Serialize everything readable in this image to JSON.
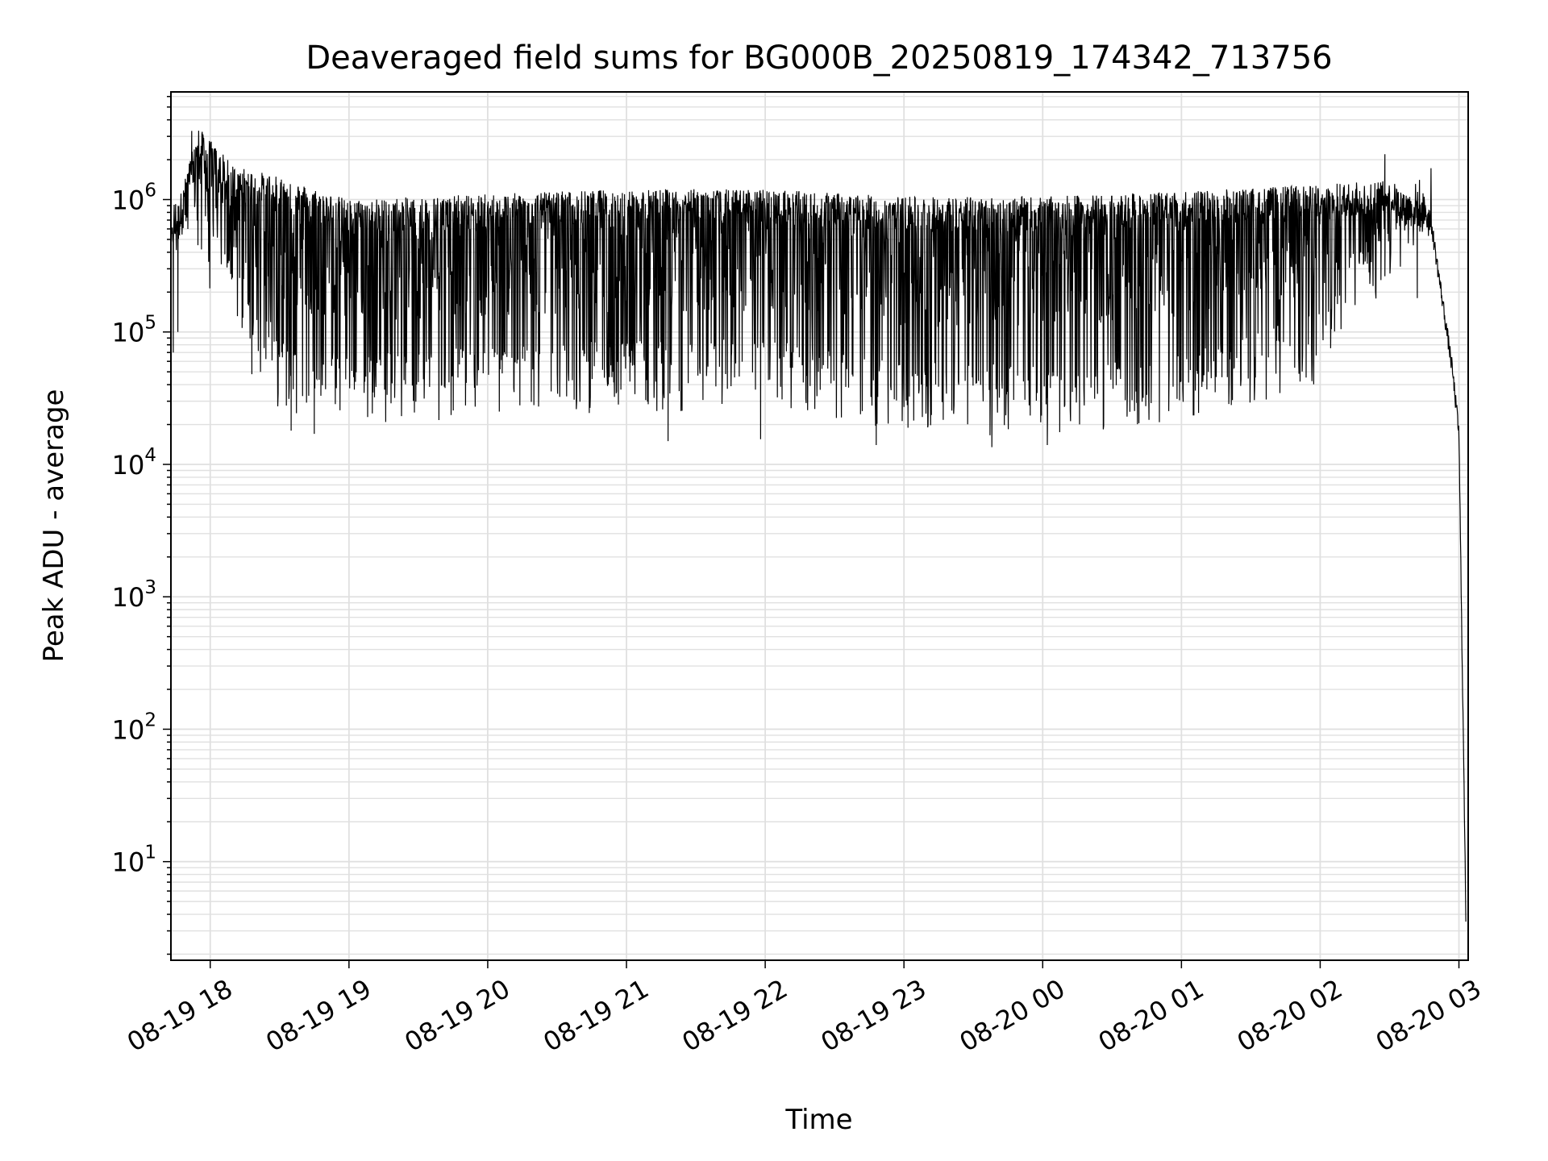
{
  "chart_data": {
    "type": "line",
    "title": "Deaveraged field sums for BG000B_20250819_174342_713756",
    "xlabel": "Time",
    "ylabel": "Peak ADU - average",
    "yscale": "log",
    "ylim": [
      1.8,
      6500000
    ],
    "xlim": [
      "2025-08-19 17:43",
      "2025-08-20 03:04"
    ],
    "grid": true,
    "line_color": "#000000",
    "grid_color": "#e0e0e0",
    "x_ticks": [
      {
        "t": "2025-08-19 18:00",
        "label": "08-19 18"
      },
      {
        "t": "2025-08-19 19:00",
        "label": "08-19 19"
      },
      {
        "t": "2025-08-19 20:00",
        "label": "08-19 20"
      },
      {
        "t": "2025-08-19 21:00",
        "label": "08-19 21"
      },
      {
        "t": "2025-08-19 22:00",
        "label": "08-19 22"
      },
      {
        "t": "2025-08-19 23:00",
        "label": "08-19 23"
      },
      {
        "t": "2025-08-20 00:00",
        "label": "08-20 00"
      },
      {
        "t": "2025-08-20 01:00",
        "label": "08-20 01"
      },
      {
        "t": "2025-08-20 02:00",
        "label": "08-20 02"
      },
      {
        "t": "2025-08-20 03:00",
        "label": "08-20 03"
      }
    ],
    "y_ticks": [
      {
        "value": 10,
        "base": "10",
        "exp": "1"
      },
      {
        "value": 100,
        "base": "10",
        "exp": "2"
      },
      {
        "value": 1000,
        "base": "10",
        "exp": "3"
      },
      {
        "value": 10000,
        "base": "10",
        "exp": "4"
      },
      {
        "value": 100000,
        "base": "10",
        "exp": "5"
      },
      {
        "value": 1000000,
        "base": "10",
        "exp": "6"
      }
    ],
    "series": [
      {
        "envelope": {
          "description_points": [
            {
              "t": "2025-08-19 17:43",
              "top": 600000,
              "bottom": 300000
            },
            {
              "t": "2025-08-19 17:55",
              "top": 3500000,
              "bottom": 250000
            },
            {
              "t": "2025-08-19 18:10",
              "top": 1800000,
              "bottom": 120000
            },
            {
              "t": "2025-08-19 18:30",
              "top": 1500000,
              "bottom": 25000
            },
            {
              "t": "2025-08-19 19:00",
              "top": 1000000,
              "bottom": 20000
            },
            {
              "t": "2025-08-19 20:00",
              "top": 1100000,
              "bottom": 22000
            },
            {
              "t": "2025-08-19 21:00",
              "top": 1200000,
              "bottom": 25000
            },
            {
              "t": "2025-08-19 22:00",
              "top": 1200000,
              "bottom": 25000
            },
            {
              "t": "2025-08-19 23:00",
              "top": 1050000,
              "bottom": 17000
            },
            {
              "t": "2025-08-20 00:00",
              "top": 1050000,
              "bottom": 16000
            },
            {
              "t": "2025-08-20 01:00",
              "top": 1150000,
              "bottom": 19000
            },
            {
              "t": "2025-08-20 02:00",
              "top": 1300000,
              "bottom": 40000
            },
            {
              "t": "2025-08-20 02:30",
              "top": 1400000,
              "bottom": 250000
            },
            {
              "t": "2025-08-20 02:48",
              "top": 900000,
              "bottom": 500000
            },
            {
              "t": "2025-08-20 02:57",
              "top": 60000,
              "bottom": 50000
            },
            {
              "t": "2025-08-20 03:00",
              "top": 20000,
              "bottom": 15000
            },
            {
              "t": "2025-08-20 03:03",
              "top": 4,
              "bottom": 4
            }
          ],
          "spikes": [
            {
              "t": "2025-08-19 17:44",
              "value": 70000
            },
            {
              "t": "2025-08-19 17:46",
              "value": 100000
            },
            {
              "t": "2025-08-19 17:52",
              "value": 3300000
            },
            {
              "t": "2025-08-19 18:18",
              "value": 48000
            },
            {
              "t": "2025-08-19 18:35",
              "value": 18000
            },
            {
              "t": "2025-08-19 18:45",
              "value": 17000
            },
            {
              "t": "2025-08-19 21:18",
              "value": 15000
            },
            {
              "t": "2025-08-19 21:58",
              "value": 15500
            },
            {
              "t": "2025-08-19 22:48",
              "value": 14000
            },
            {
              "t": "2025-08-19 23:38",
              "value": 13500
            },
            {
              "t": "2025-08-20 00:02",
              "value": 14000
            },
            {
              "t": "2025-08-20 02:28",
              "value": 2200000
            },
            {
              "t": "2025-08-20 02:42",
              "value": 180000
            }
          ]
        }
      }
    ]
  }
}
